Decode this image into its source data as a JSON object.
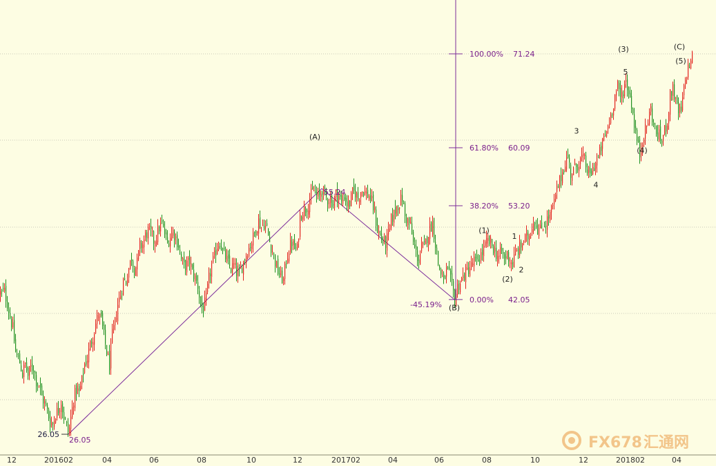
{
  "colors": {
    "background": "#fdfde3",
    "up_candle": "#e0201b",
    "down_candle": "#1e8f1e",
    "fib_line": "#7a2a9a",
    "fib_text": "#7a1f8c",
    "grid": "#c9c9b8",
    "wave_text": "#222222",
    "watermark": "#f2c58a"
  },
  "chart_data": {
    "type": "candlestick",
    "title": "",
    "x_tick_labels": [
      "12",
      "201602",
      "04",
      "06",
      "08",
      "10",
      "12",
      "201702",
      "04",
      "06",
      "08",
      "10",
      "12",
      "201802",
      "04"
    ],
    "grid": true,
    "close_path": [
      [
        0,
        42.8
      ],
      [
        6,
        43.0
      ],
      [
        10,
        41.6
      ],
      [
        14,
        40.0
      ],
      [
        18,
        38.6
      ],
      [
        22,
        35.8
      ],
      [
        28,
        34.6
      ],
      [
        32,
        33.2
      ],
      [
        36,
        34.4
      ],
      [
        40,
        33.0
      ],
      [
        44,
        34.0
      ],
      [
        48,
        33.9
      ],
      [
        52,
        32.4
      ],
      [
        56,
        32.0
      ],
      [
        60,
        30.5
      ],
      [
        64,
        29.7
      ],
      [
        68,
        28.8
      ],
      [
        72,
        27.5
      ],
      [
        76,
        27.3
      ],
      [
        80,
        28.5
      ],
      [
        84,
        29.0
      ],
      [
        88,
        30.0
      ],
      [
        92,
        28.1
      ],
      [
        96,
        27.0
      ],
      [
        99,
        26.05
      ],
      [
        102,
        28.0
      ],
      [
        106,
        30.2
      ],
      [
        110,
        31.4
      ],
      [
        114,
        30.9
      ],
      [
        118,
        32.4
      ],
      [
        122,
        34.4
      ],
      [
        126,
        35.1
      ],
      [
        130,
        36.7
      ],
      [
        134,
        37.7
      ],
      [
        138,
        39.2
      ],
      [
        142,
        40.3
      ],
      [
        146,
        39.6
      ],
      [
        150,
        37.7
      ],
      [
        154,
        35.8
      ],
      [
        158,
        34.3
      ],
      [
        162,
        37.8
      ],
      [
        166,
        39.3
      ],
      [
        170,
        41.5
      ],
      [
        174,
        42.7
      ],
      [
        178,
        44.3
      ],
      [
        182,
        44.2
      ],
      [
        186,
        45.8
      ],
      [
        190,
        47.1
      ],
      [
        194,
        45.7
      ],
      [
        198,
        46.4
      ],
      [
        202,
        48.4
      ],
      [
        206,
        48.6
      ],
      [
        210,
        49.6
      ],
      [
        214,
        50.2
      ],
      [
        218,
        49.9
      ],
      [
        222,
        49.0
      ],
      [
        226,
        49.6
      ],
      [
        230,
        50.6
      ],
      [
        234,
        51.0
      ],
      [
        238,
        49.9
      ],
      [
        242,
        48.7
      ],
      [
        246,
        49.6
      ],
      [
        250,
        50.2
      ],
      [
        254,
        49.4
      ],
      [
        258,
        48.5
      ],
      [
        262,
        46.8
      ],
      [
        266,
        46.0
      ],
      [
        270,
        46.2
      ],
      [
        274,
        46.6
      ],
      [
        278,
        45.3
      ],
      [
        282,
        44.6
      ],
      [
        286,
        43.7
      ],
      [
        290,
        41.4
      ],
      [
        294,
        40.9
      ],
      [
        298,
        42.1
      ],
      [
        302,
        44.5
      ],
      [
        306,
        46.1
      ],
      [
        310,
        47.1
      ],
      [
        314,
        48.5
      ],
      [
        318,
        49.0
      ],
      [
        322,
        47.7
      ],
      [
        326,
        47.1
      ],
      [
        330,
        46.3
      ],
      [
        334,
        45.7
      ],
      [
        338,
        46.1
      ],
      [
        342,
        45.3
      ],
      [
        346,
        45.0
      ],
      [
        350,
        46.0
      ],
      [
        354,
        47.0
      ],
      [
        358,
        47.8
      ],
      [
        362,
        48.6
      ],
      [
        366,
        49.4
      ],
      [
        370,
        50.4
      ],
      [
        374,
        51.4
      ],
      [
        378,
        50.7
      ],
      [
        382,
        51.1
      ],
      [
        386,
        50.4
      ],
      [
        390,
        48.9
      ],
      [
        394,
        47.9
      ],
      [
        398,
        46.5
      ],
      [
        402,
        45.4
      ],
      [
        406,
        44.8
      ],
      [
        410,
        44.3
      ],
      [
        414,
        46.8
      ],
      [
        418,
        48.0
      ],
      [
        422,
        48.9
      ],
      [
        426,
        48.1
      ],
      [
        430,
        48.0
      ],
      [
        434,
        51.9
      ],
      [
        438,
        52.7
      ],
      [
        442,
        52.9
      ],
      [
        446,
        53.4
      ],
      [
        450,
        54.5
      ],
      [
        454,
        55.0
      ],
      [
        458,
        54.3
      ],
      [
        462,
        54.3
      ],
      [
        466,
        55.24
      ],
      [
        470,
        54.3
      ],
      [
        474,
        54.0
      ],
      [
        478,
        54.1
      ],
      [
        482,
        53.4
      ],
      [
        486,
        54.6
      ],
      [
        490,
        54.5
      ],
      [
        494,
        53.5
      ],
      [
        498,
        54.4
      ],
      [
        502,
        53.4
      ],
      [
        506,
        53.5
      ],
      [
        510,
        54.7
      ],
      [
        514,
        54.8
      ],
      [
        518,
        54.0
      ],
      [
        522,
        55.0
      ],
      [
        526,
        55.0
      ],
      [
        530,
        54.6
      ],
      [
        534,
        54.4
      ],
      [
        538,
        53.6
      ],
      [
        542,
        52.4
      ],
      [
        546,
        50.3
      ],
      [
        550,
        49.7
      ],
      [
        554,
        49.0
      ],
      [
        558,
        48.7
      ],
      [
        562,
        49.8
      ],
      [
        566,
        51.5
      ],
      [
        570,
        52.2
      ],
      [
        574,
        53.1
      ],
      [
        578,
        53.6
      ],
      [
        582,
        54.1
      ],
      [
        586,
        51.9
      ],
      [
        590,
        51.4
      ],
      [
        594,
        50.8
      ],
      [
        598,
        48.7
      ],
      [
        602,
        47.6
      ],
      [
        606,
        46.7
      ],
      [
        610,
        48.3
      ],
      [
        614,
        48.2
      ],
      [
        618,
        49.5
      ],
      [
        622,
        50.5
      ],
      [
        626,
        51.2
      ],
      [
        630,
        48.7
      ],
      [
        634,
        46.3
      ],
      [
        638,
        45.2
      ],
      [
        642,
        44.1
      ],
      [
        646,
        45.5
      ],
      [
        650,
        44.9
      ],
      [
        654,
        43.6
      ],
      [
        658,
        42.05
      ],
      [
        662,
        43.6
      ],
      [
        666,
        44.1
      ],
      [
        670,
        44.7
      ],
      [
        674,
        45.2
      ],
      [
        678,
        45.7
      ],
      [
        682,
        46.0
      ],
      [
        686,
        46.7
      ],
      [
        690,
        46.3
      ],
      [
        694,
        47.2
      ],
      [
        698,
        47.6
      ],
      [
        702,
        48.4
      ],
      [
        706,
        49.0
      ],
      [
        710,
        48.7
      ],
      [
        714,
        48.2
      ],
      [
        718,
        47.5
      ],
      [
        722,
        47.1
      ],
      [
        726,
        47.8
      ],
      [
        730,
        46.8
      ],
      [
        734,
        47.5
      ],
      [
        738,
        46.7
      ],
      [
        742,
        46.3
      ],
      [
        746,
        47.6
      ],
      [
        750,
        47.9
      ],
      [
        754,
        48.4
      ],
      [
        758,
        49.1
      ],
      [
        762,
        49.3
      ],
      [
        766,
        49.7
      ],
      [
        770,
        51.0
      ],
      [
        774,
        51.6
      ],
      [
        778,
        50.5
      ],
      [
        782,
        50.3
      ],
      [
        786,
        50.9
      ],
      [
        790,
        51.2
      ],
      [
        794,
        51.8
      ],
      [
        798,
        52.6
      ],
      [
        802,
        53.5
      ],
      [
        806,
        55.0
      ],
      [
        810,
        56.1
      ],
      [
        814,
        57.2
      ],
      [
        818,
        58.4
      ],
      [
        822,
        59.0
      ],
      [
        826,
        57.0
      ],
      [
        830,
        57.4
      ],
      [
        834,
        57.9
      ],
      [
        838,
        58.4
      ],
      [
        842,
        58.9
      ],
      [
        846,
        58.5
      ],
      [
        850,
        57.4
      ],
      [
        854,
        56.7
      ],
      [
        858,
        57.5
      ],
      [
        862,
        58.4
      ],
      [
        866,
        58.8
      ],
      [
        870,
        60.1
      ],
      [
        874,
        61.1
      ],
      [
        878,
        62.0
      ],
      [
        882,
        63.3
      ],
      [
        886,
        64.6
      ],
      [
        890,
        66.3
      ],
      [
        894,
        67.3
      ],
      [
        898,
        66.0
      ],
      [
        902,
        67.0
      ],
      [
        906,
        68.0
      ],
      [
        910,
        66.8
      ],
      [
        914,
        65.3
      ],
      [
        918,
        63.0
      ],
      [
        922,
        60.9
      ],
      [
        926,
        59.3
      ],
      [
        930,
        61.2
      ],
      [
        934,
        62.1
      ],
      [
        938,
        63.3
      ],
      [
        942,
        64.7
      ],
      [
        946,
        62.8
      ],
      [
        950,
        61.8
      ],
      [
        954,
        61.5
      ],
      [
        958,
        60.9
      ],
      [
        962,
        62.1
      ],
      [
        966,
        63.3
      ],
      [
        970,
        66.2
      ],
      [
        974,
        67.4
      ],
      [
        978,
        65.4
      ],
      [
        982,
        64.3
      ],
      [
        986,
        64.4
      ],
      [
        990,
        67.0
      ],
      [
        994,
        69.1
      ],
      [
        998,
        70.0
      ],
      [
        1002,
        70.8
      ]
    ],
    "trend_lines": [
      {
        "from": [
          99,
          26.05
        ],
        "to": [
          466,
          55.24
        ]
      },
      {
        "from": [
          466,
          55.24
        ],
        "to": [
          658,
          42.05
        ]
      }
    ],
    "fibonacci": {
      "levels": [
        {
          "ratio_label": "100.00%",
          "value": 71.24
        },
        {
          "ratio_label": "61.80%",
          "value": 60.09
        },
        {
          "ratio_label": "38.20%",
          "value": 53.2
        },
        {
          "ratio_label": "0.00%",
          "value": 42.05
        }
      ],
      "retracement_label": "-45.19%"
    },
    "price_labels": [
      {
        "text": "26.05",
        "at": [
          99,
          26.05
        ],
        "side": "left",
        "purple": false
      },
      {
        "text": "26.05",
        "at": [
          99,
          26.05
        ],
        "side": "right-below",
        "purple": true
      },
      {
        "text": "55.24",
        "at": [
          466,
          55.24
        ],
        "side": "right",
        "purple": true
      }
    ],
    "wave_labels": [
      {
        "text": "(A)",
        "at": [
          456,
          61.4
        ]
      },
      {
        "text": "(B)",
        "at": [
          658,
          41.1
        ]
      },
      {
        "text": "(1)",
        "at": [
          701,
          50.3
        ]
      },
      {
        "text": "1",
        "at": [
          745,
          49.6
        ]
      },
      {
        "text": "2",
        "at": [
          755,
          45.6
        ]
      },
      {
        "text": "(2)",
        "at": [
          735,
          44.5
        ]
      },
      {
        "text": "3",
        "at": [
          835,
          62.1
        ]
      },
      {
        "text": "4",
        "at": [
          863,
          55.7
        ]
      },
      {
        "text": "(3)",
        "at": [
          903,
          71.8
        ]
      },
      {
        "text": "5",
        "at": [
          906,
          69.1
        ]
      },
      {
        "text": "(4)",
        "at": [
          930,
          59.8
        ]
      },
      {
        "text": "(C)",
        "at": [
          984,
          72.1
        ]
      },
      {
        "text": "(5)",
        "at": [
          986,
          70.4
        ]
      }
    ]
  },
  "watermark": {
    "brand": "FX678",
    "suffix": "汇通网"
  }
}
